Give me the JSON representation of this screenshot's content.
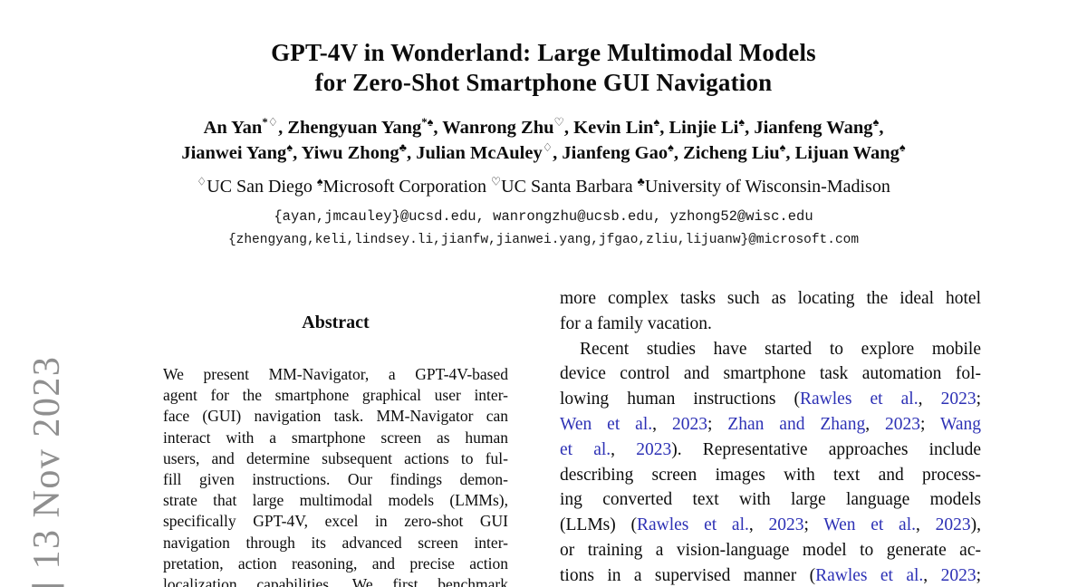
{
  "paper": {
    "title_lines": [
      "GPT-4V in Wonderland: Large Multimodal Models",
      "for Zero-Shot Smartphone GUI Navigation"
    ],
    "authors_line1": [
      {
        "name": "An Yan",
        "sup": "*♢",
        "sep": ", "
      },
      {
        "name": "Zhengyuan Yang",
        "sup": "*♠",
        "sep": ", "
      },
      {
        "name": "Wanrong Zhu",
        "sup": "♡",
        "sep": ", "
      },
      {
        "name": "Kevin Lin",
        "sup": "♠",
        "sep": ", "
      },
      {
        "name": "Linjie Li",
        "sup": "♠",
        "sep": ", "
      },
      {
        "name": "Jianfeng Wang",
        "sup": "♠",
        "sep": ","
      }
    ],
    "authors_line2": [
      {
        "name": "Jianwei Yang",
        "sup": "♠",
        "sep": ", "
      },
      {
        "name": "Yiwu Zhong",
        "sup": "♣",
        "sep": ", "
      },
      {
        "name": "Julian McAuley",
        "sup": "♢",
        "sep": ", "
      },
      {
        "name": "Jianfeng Gao",
        "sup": "♠",
        "sep": ", "
      },
      {
        "name": "Zicheng Liu",
        "sup": "♠",
        "sep": ", "
      },
      {
        "name": "Lijuan Wang",
        "sup": "♠",
        "sep": ""
      }
    ],
    "affiliations": [
      {
        "sym": "♢",
        "name": "UC San Diego"
      },
      {
        "sym": "♠",
        "name": "Microsoft Corporation"
      },
      {
        "sym": "♡",
        "name": "UC Santa Barbara"
      },
      {
        "sym": "♣",
        "name": "University of Wisconsin-Madison"
      }
    ],
    "emails": [
      "{ayan,jmcauley}@ucsd.edu, wanrongzhu@ucsb.edu, yzhong52@wisc.edu",
      "{zhengyang,keli,lindsey.li,jianfw,jianwei.yang,jfgao,zliu,lijuanw}@microsoft.com"
    ],
    "watermark": "] 13 Nov 2023",
    "abstract": {
      "heading": "Abstract",
      "lines": [
        {
          "t": "We present MM-Navigator, a GPT-4V-based"
        },
        {
          "t": "agent for the smartphone graphical user inter-"
        },
        {
          "t": "face (GUI) navigation task. MM-Navigator can"
        },
        {
          "t": "interact with a smartphone screen as human"
        },
        {
          "t": "users, and determine subsequent actions to ful-"
        },
        {
          "t": "fill given instructions. Our findings demon-"
        },
        {
          "t": "strate that large multimodal models (LMMs),"
        },
        {
          "t": "specifically GPT-4V, excel in zero-shot GUI"
        },
        {
          "t": "navigation through its advanced screen inter-"
        },
        {
          "t": "pretation, action reasoning, and precise action"
        },
        {
          "t": "localization capabilities. We first benchmark"
        }
      ]
    },
    "intro_column": {
      "lines": [
        {
          "seg": [
            {
              "t": "more complex tasks such as locating the ideal hotel"
            }
          ]
        },
        {
          "j": false,
          "seg": [
            {
              "t": "for a family vacation."
            }
          ]
        },
        {
          "ind": true,
          "seg": [
            {
              "t": "Recent studies have started to explore mobile"
            }
          ]
        },
        {
          "seg": [
            {
              "t": "device control and smartphone task automation fol-"
            }
          ]
        },
        {
          "seg": [
            {
              "t": "lowing human instructions ("
            },
            {
              "t": "Rawles et al.",
              "link": true
            },
            {
              "t": ", "
            },
            {
              "t": "2023",
              "link": true
            },
            {
              "t": ";"
            }
          ]
        },
        {
          "seg": [
            {
              "t": "Wen et al.",
              "link": true
            },
            {
              "t": ", "
            },
            {
              "t": "2023",
              "link": true
            },
            {
              "t": "; "
            },
            {
              "t": "Zhan and Zhang",
              "link": true
            },
            {
              "t": ", "
            },
            {
              "t": "2023",
              "link": true
            },
            {
              "t": "; "
            },
            {
              "t": "Wang",
              "link": true
            }
          ]
        },
        {
          "seg": [
            {
              "t": "et al.",
              "link": true
            },
            {
              "t": ", "
            },
            {
              "t": "2023",
              "link": true
            },
            {
              "t": "). Representative approaches include"
            }
          ]
        },
        {
          "seg": [
            {
              "t": "describing screen images with text and process-"
            }
          ]
        },
        {
          "seg": [
            {
              "t": "ing converted text with large language models"
            }
          ]
        },
        {
          "seg": [
            {
              "t": "(LLMs) ("
            },
            {
              "t": "Rawles et al.",
              "link": true
            },
            {
              "t": ", "
            },
            {
              "t": "2023",
              "link": true
            },
            {
              "t": "; "
            },
            {
              "t": "Wen et al.",
              "link": true
            },
            {
              "t": ", "
            },
            {
              "t": "2023",
              "link": true
            },
            {
              "t": "),"
            }
          ]
        },
        {
          "seg": [
            {
              "t": "or training a vision-language model to generate ac-"
            }
          ]
        },
        {
          "seg": [
            {
              "t": "tions in a supervised manner ("
            },
            {
              "t": "Rawles et al.",
              "link": true
            },
            {
              "t": ", "
            },
            {
              "t": "2023",
              "link": true
            },
            {
              "t": ";"
            }
          ]
        }
      ]
    },
    "colors": {
      "citation_blue": "#2d31b5",
      "watermark_gray": "#8f8f8f"
    }
  }
}
